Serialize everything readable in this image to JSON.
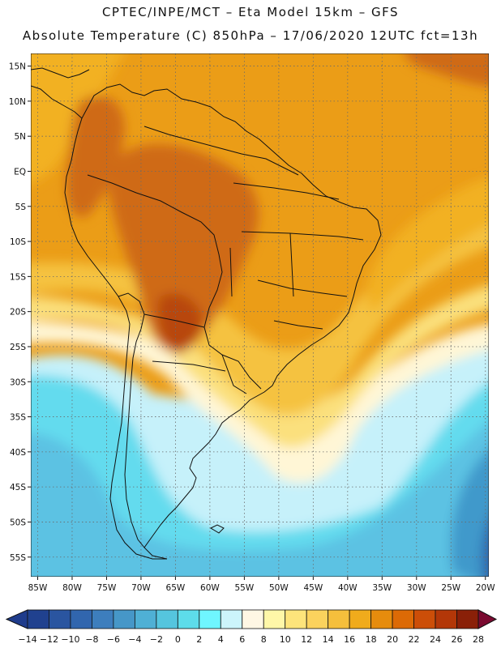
{
  "header": {
    "line1": "CPTEC/INPE/MCT –  Eta Model 15km – GFS",
    "line2": "Absolute Temperature (C) 850hPa – 17/06/2020 12UTC fct=13h"
  },
  "map": {
    "lat_labels": [
      "15N",
      "10N",
      "5N",
      "EQ",
      "5S",
      "10S",
      "15S",
      "20S",
      "25S",
      "30S",
      "35S",
      "40S",
      "45S",
      "50S",
      "55S"
    ],
    "lat_values": [
      15,
      10,
      5,
      0,
      -5,
      -10,
      -15,
      -20,
      -25,
      -30,
      -35,
      -40,
      -45,
      -50,
      -55
    ],
    "lon_labels": [
      "85W",
      "80W",
      "75W",
      "70W",
      "65W",
      "60W",
      "55W",
      "50W",
      "45W",
      "40W",
      "35W",
      "30W",
      "25W",
      "20W"
    ],
    "lon_values": [
      -85,
      -80,
      -75,
      -70,
      -65,
      -60,
      -55,
      -50,
      -45,
      -40,
      -35,
      -30,
      -25,
      -20
    ],
    "extent": {
      "lon_min": -86,
      "lon_max": -19.5,
      "lat_max": 16.8,
      "lat_min": -57.8
    }
  },
  "colorbar": {
    "labels": [
      "-14",
      "-12",
      "-10",
      "-8",
      "-6",
      "-4",
      "-2",
      "0",
      "2",
      "4",
      "6",
      "8",
      "10",
      "12",
      "14",
      "16",
      "18",
      "20",
      "22",
      "24",
      "26",
      "28"
    ],
    "colors": {
      "underflow": "#1f3c8c",
      "bins": [
        "#20418f",
        "#2a55a0",
        "#3166ae",
        "#3d7ebd",
        "#4697c8",
        "#4fb0d5",
        "#55c5de",
        "#5ddcea",
        "#6ff6ff",
        "#ccf4fb",
        "#fff7e4",
        "#fff7a8",
        "#fde47b",
        "#fbd25d",
        "#f5bf3c",
        "#f0ab1c",
        "#e68c0d",
        "#dc6a06",
        "#cc4e08",
        "#b33708",
        "#8a2008"
      ],
      "overflow": "#7a0a30"
    }
  },
  "field_colors": {
    "hot": "#cf6b17",
    "veryhot": "#b8470e",
    "orange": "#eb9d17",
    "amber": "#f2b124",
    "gold": "#f5c240",
    "yellow": "#fbe07d",
    "cream": "#fff6d6",
    "palecyan": "#c6f1fa",
    "cyan": "#63dbee",
    "lightblue": "#5cc2e3",
    "blue": "#4199cb",
    "deepblue": "#2d68ae",
    "land_line": "#111111"
  }
}
